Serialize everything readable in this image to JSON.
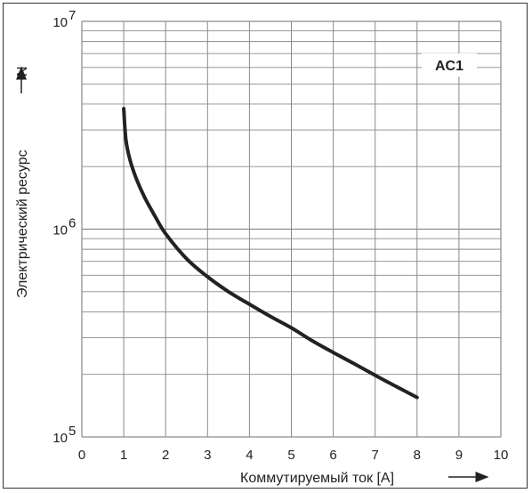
{
  "chart_data": {
    "type": "line",
    "title": "",
    "tag": "AC1",
    "xlabel": "Коммутируемый ток [A]",
    "ylabel": "Электрический ресурс",
    "ylabel_symbol": "N",
    "x_ticks": [
      "0",
      "1",
      "2",
      "3",
      "4",
      "5",
      "6",
      "7",
      "8",
      "9",
      "10"
    ],
    "y_ticks": [
      {
        "base": "10",
        "exp": "5"
      },
      {
        "base": "10",
        "exp": "6"
      },
      {
        "base": "10",
        "exp": "7"
      }
    ],
    "xlim": [
      0,
      10
    ],
    "ylim": [
      100000,
      10000000
    ],
    "y_scale": "log",
    "grid": true,
    "series": [
      {
        "x": [
          1.0,
          1.05,
          1.15,
          1.3,
          1.5,
          1.75,
          2.0,
          2.5,
          3.0,
          3.5,
          4.0,
          4.5,
          5.0,
          5.5,
          6.0,
          6.5,
          7.0,
          7.5,
          8.0
        ],
        "y": [
          3800000,
          2700000,
          2150000,
          1750000,
          1420000,
          1150000,
          950000,
          720000,
          590000,
          500000,
          435000,
          380000,
          335000,
          290000,
          255000,
          225000,
          198000,
          175000,
          155000
        ]
      }
    ]
  }
}
